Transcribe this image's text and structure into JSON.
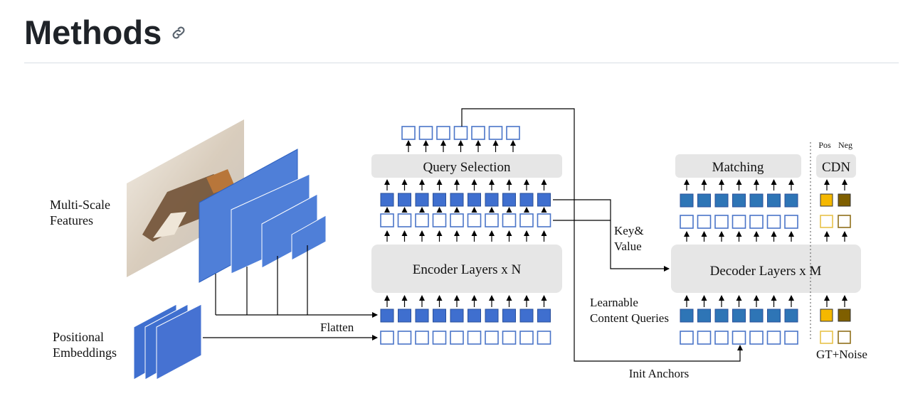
{
  "page": {
    "heading": "Methods",
    "anchor_icon": "link-icon"
  },
  "diagram": {
    "inputs": {
      "features_line1": "Multi-Scale",
      "features_line2": "Features",
      "pos_line1": "Positional",
      "pos_line2": "Embeddings",
      "flatten": "Flatten"
    },
    "encoder": {
      "label": "Encoder Layers x N",
      "query_selection": "Query Selection"
    },
    "decoder": {
      "label": "Decoder Layers x M",
      "matching": "Matching",
      "cdn": "CDN",
      "pos": "Pos",
      "neg": "Neg",
      "gt_noise": "GT+Noise",
      "learnable_line1": "Learnable",
      "learnable_line2": "Content Queries"
    },
    "connections": {
      "key_value_line1": "Key&",
      "key_value_line2": "Value",
      "init_anchors": "Init Anchors"
    },
    "colors": {
      "blue_fill": "#3f6fcf",
      "blue_outline": "#4a74c8",
      "decoder_fill": "#2e75b6",
      "plane": "#4f7fd8",
      "box_gray": "#e6e6e6",
      "pos_fill": "#f5b800",
      "neg_fill": "#7f5f00",
      "pos_outline": "#e7c24a",
      "neg_outline": "#8f6f1a"
    }
  }
}
